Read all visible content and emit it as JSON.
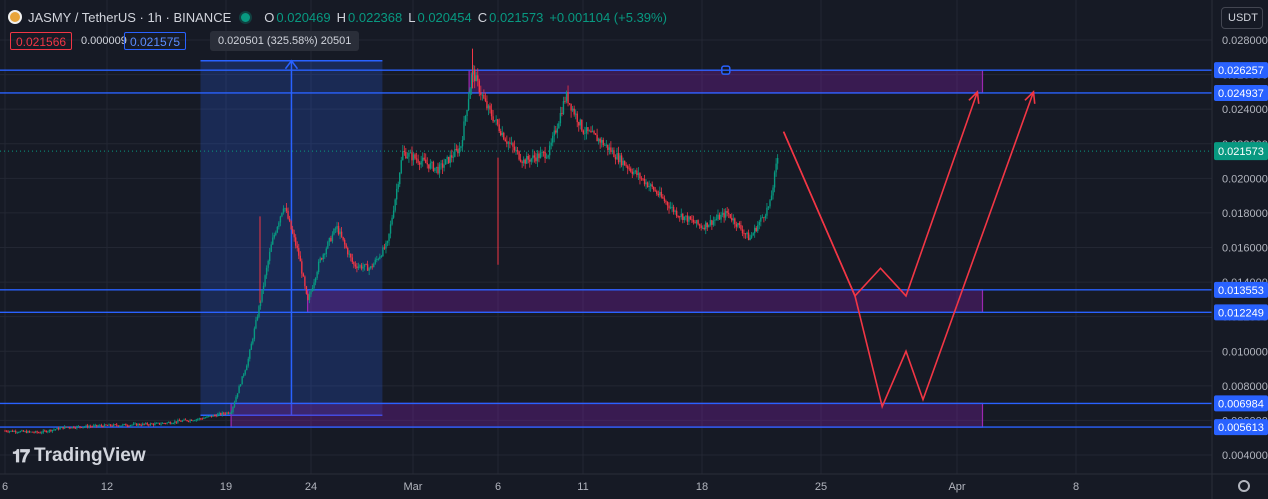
{
  "header": {
    "symbol": "JASMY / TetherUS · 1h · BINANCE",
    "open_label": "O",
    "open": "0.020469",
    "high_label": "H",
    "high": "0.022368",
    "low_label": "L",
    "low": "0.020454",
    "close_label": "C",
    "close": "0.021573",
    "change": "+0.001104 (+5.39%)"
  },
  "order": {
    "bid": "0.021566",
    "spread": "0.000009",
    "ask": "0.021575"
  },
  "measure_tooltip": "0.020501 (325.58%) 20501",
  "currency": "USDT",
  "branding": "TradingView",
  "colors": {
    "background": "#161a25",
    "up": "#089981",
    "down": "#f23645",
    "level_line": "#2962ff",
    "zone": "#7b1fa2",
    "projection": "#f23645"
  },
  "chart_data": {
    "type": "candlestick",
    "y_range": [
      0.0035,
      0.0285
    ],
    "y_ticks": [
      {
        "value": 0.004,
        "label": "0.004000"
      },
      {
        "value": 0.006,
        "label": "0.006000"
      },
      {
        "value": 0.008,
        "label": "0.008000"
      },
      {
        "value": 0.01,
        "label": "0.010000"
      },
      {
        "value": 0.012,
        "label": "0.012000"
      },
      {
        "value": 0.014,
        "label": "0.014000"
      },
      {
        "value": 0.016,
        "label": "0.016000"
      },
      {
        "value": 0.018,
        "label": "0.018000"
      },
      {
        "value": 0.02,
        "label": "0.020000"
      },
      {
        "value": 0.022,
        "label": "0.022000"
      },
      {
        "value": 0.024,
        "label": "0.024000"
      },
      {
        "value": 0.026,
        "label": "0.026000"
      },
      {
        "value": 0.028,
        "label": "0.028000"
      }
    ],
    "x_range": [
      6,
      69
    ],
    "x_ticks": [
      {
        "day": 6,
        "label": "6"
      },
      {
        "day": 12,
        "label": "12"
      },
      {
        "day": 19,
        "label": "19"
      },
      {
        "day": 24,
        "label": "24"
      },
      {
        "day": 30,
        "label": "Mar"
      },
      {
        "day": 35,
        "label": "6"
      },
      {
        "day": 40,
        "label": "11"
      },
      {
        "day": 47,
        "label": "18"
      },
      {
        "day": 54,
        "label": "25"
      },
      {
        "day": 62,
        "label": "Apr"
      },
      {
        "day": 69,
        "label": "8"
      }
    ],
    "price_path": [
      [
        6.0,
        0.0054
      ],
      [
        8.0,
        0.0053
      ],
      [
        9.5,
        0.0056
      ],
      [
        12.0,
        0.0057
      ],
      [
        15.0,
        0.0058
      ],
      [
        17.5,
        0.0061
      ],
      [
        19.3,
        0.0065
      ],
      [
        20.3,
        0.0095
      ],
      [
        21.0,
        0.0128
      ],
      [
        21.7,
        0.0163
      ],
      [
        22.4,
        0.0185
      ],
      [
        23.3,
        0.0155
      ],
      [
        23.8,
        0.0128
      ],
      [
        24.5,
        0.0152
      ],
      [
        25.5,
        0.0172
      ],
      [
        26.5,
        0.015
      ],
      [
        27.5,
        0.0148
      ],
      [
        28.5,
        0.0162
      ],
      [
        29.4,
        0.0215
      ],
      [
        30.5,
        0.021
      ],
      [
        31.5,
        0.0205
      ],
      [
        32.8,
        0.0218
      ],
      [
        33.5,
        0.0262
      ],
      [
        34.3,
        0.0242
      ],
      [
        35.5,
        0.0222
      ],
      [
        36.5,
        0.021
      ],
      [
        38.0,
        0.0215
      ],
      [
        39.0,
        0.0248
      ],
      [
        40.0,
        0.0228
      ],
      [
        41.0,
        0.0222
      ],
      [
        42.5,
        0.0208
      ],
      [
        44.0,
        0.0195
      ],
      [
        45.5,
        0.018
      ],
      [
        47.0,
        0.0172
      ],
      [
        48.5,
        0.018
      ],
      [
        49.8,
        0.0165
      ],
      [
        51.0,
        0.0185
      ],
      [
        51.5,
        0.0215
      ]
    ],
    "last_price": {
      "value": 0.021573,
      "label": "0.021573"
    },
    "levels": [
      {
        "value": 0.026257,
        "label": "0.026257"
      },
      {
        "value": 0.024937,
        "label": "0.024937"
      },
      {
        "value": 0.013553,
        "label": "0.013553"
      },
      {
        "value": 0.012249,
        "label": "0.012249"
      },
      {
        "value": 0.006984,
        "label": "0.006984"
      },
      {
        "value": 0.005613,
        "label": "0.005613"
      }
    ],
    "zones": [
      {
        "top": 0.026257,
        "bottom": 0.024937,
        "from_day": 33.3,
        "to_day": 63.5
      },
      {
        "top": 0.013553,
        "bottom": 0.012249,
        "from_day": 23.8,
        "to_day": 63.5
      },
      {
        "top": 0.006984,
        "bottom": 0.005613,
        "from_day": 19.3,
        "to_day": 63.5
      }
    ],
    "measure": {
      "from_day": 17.5,
      "to_day": 28.2,
      "low": 0.0063,
      "high": 0.0268
    },
    "projections": [
      [
        [
          51.8,
          0.0227
        ],
        [
          56.0,
          0.0132
        ],
        [
          57.5,
          0.0148
        ],
        [
          59.0,
          0.0132
        ],
        [
          63.2,
          0.025
        ]
      ],
      [
        [
          51.8,
          0.0227
        ],
        [
          56.0,
          0.0132
        ],
        [
          57.6,
          0.0068
        ],
        [
          59.0,
          0.01
        ],
        [
          60.0,
          0.0072
        ],
        [
          66.5,
          0.025
        ]
      ]
    ]
  }
}
